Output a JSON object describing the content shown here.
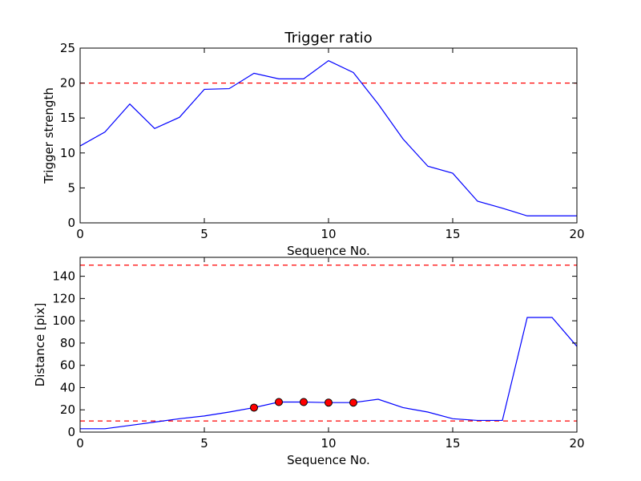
{
  "chart_data": [
    {
      "type": "line",
      "title": "Trigger ratio",
      "xlabel": "Sequence No.",
      "ylabel": "Trigger strength",
      "xlim": [
        0,
        20
      ],
      "ylim": [
        0,
        25
      ],
      "xticks": [
        0,
        5,
        10,
        15,
        20
      ],
      "yticks": [
        0,
        5,
        10,
        15,
        20,
        25
      ],
      "grid": false,
      "series": [
        {
          "color": "#0000ff",
          "style": "solid",
          "x": [
            0,
            1,
            2,
            3,
            4,
            5,
            6,
            7,
            8,
            9,
            10,
            11,
            12,
            13,
            14,
            15,
            16,
            17,
            18,
            19,
            20
          ],
          "y": [
            11.0,
            13.0,
            17.0,
            13.5,
            15.1,
            19.1,
            19.2,
            21.4,
            20.6,
            20.6,
            23.2,
            21.5,
            17.0,
            12.0,
            8.1,
            7.1,
            3.1,
            2.1,
            1.0,
            1.0,
            1.0
          ]
        }
      ],
      "reference_lines": [
        {
          "y": 20,
          "color": "#ff0000",
          "style": "dashed"
        }
      ]
    },
    {
      "type": "line",
      "title": "",
      "xlabel": "Sequence No.",
      "ylabel": "Distance [pix]",
      "xlim": [
        0,
        20
      ],
      "ylim": [
        0,
        157
      ],
      "xticks": [
        0,
        5,
        10,
        15,
        20
      ],
      "yticks": [
        0,
        20,
        40,
        60,
        80,
        100,
        120,
        140
      ],
      "grid": false,
      "series": [
        {
          "color": "#0000ff",
          "style": "solid",
          "x": [
            0,
            1,
            2,
            3,
            4,
            5,
            6,
            7,
            8,
            9,
            10,
            11,
            12,
            13,
            14,
            15,
            16,
            17,
            18,
            19,
            20
          ],
          "y": [
            3,
            3,
            6,
            9,
            12,
            14.5,
            18,
            22,
            27,
            27,
            26.5,
            26.5,
            29.5,
            22,
            18,
            12,
            10.5,
            10.5,
            103,
            103,
            77
          ]
        }
      ],
      "markers": {
        "color": "#ff0000",
        "x": [
          7,
          8,
          9,
          10,
          11
        ],
        "y": [
          22,
          27,
          27,
          26.5,
          26.5
        ]
      },
      "reference_lines": [
        {
          "y": 150,
          "color": "#ff0000",
          "style": "dashed"
        },
        {
          "y": 10,
          "color": "#ff0000",
          "style": "dashed"
        }
      ]
    }
  ]
}
